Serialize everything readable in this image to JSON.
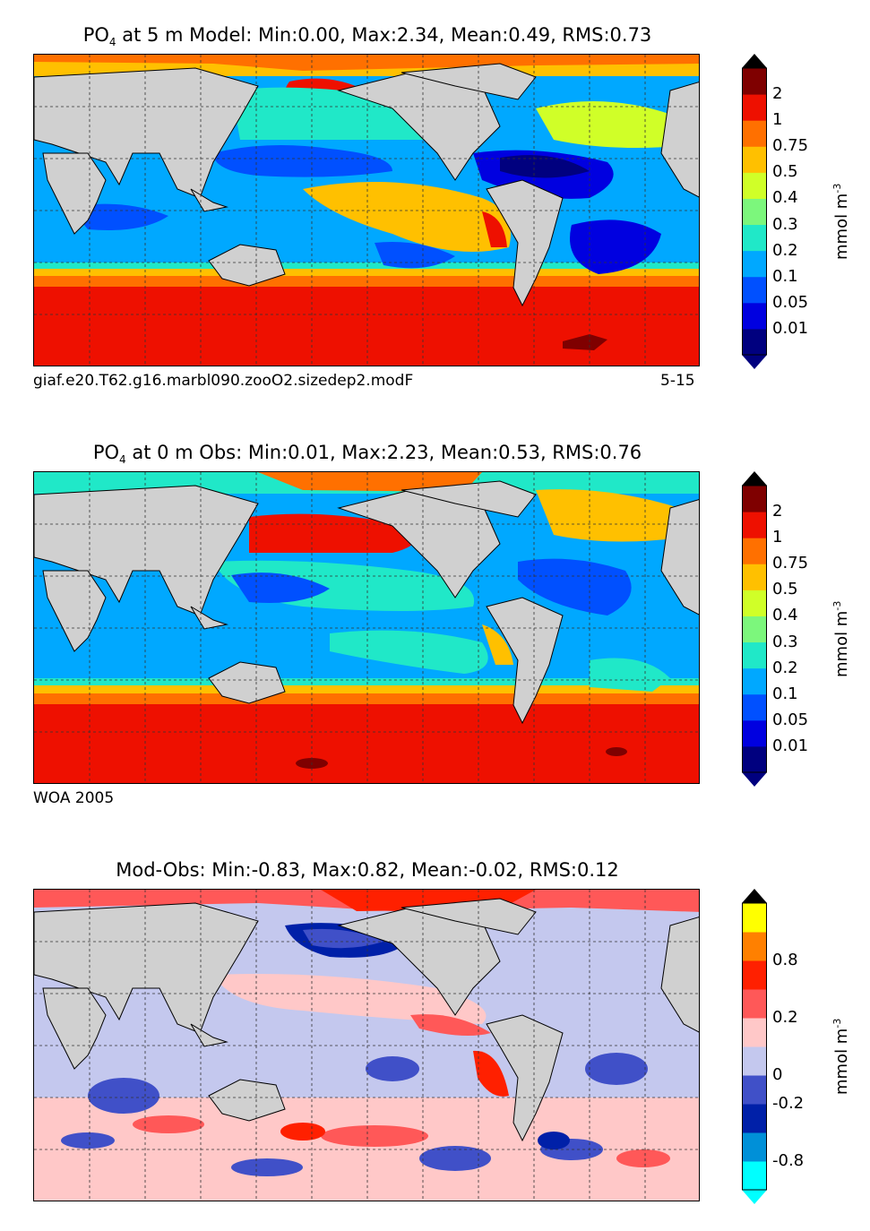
{
  "panels": [
    {
      "title_prefix": "PO",
      "title_sub": "4",
      "title_suffix": " at 5 m Model: Min:0.00, Max:2.34, Mean:0.49, RMS:0.73",
      "footer_left": "giaf.e20.T62.g16.marbl090.zooO2.sizedep2.modF",
      "footer_right": "5-15",
      "colorbar": {
        "colors": [
          "#00007f",
          "#0000e0",
          "#0050ff",
          "#00a8ff",
          "#20e8c8",
          "#7cf77c",
          "#d0ff28",
          "#ffc000",
          "#ff7000",
          "#ee1000",
          "#7f0000"
        ],
        "ticks": [
          "0.01",
          "0.05",
          "0.1",
          "0.2",
          "0.3",
          "0.4",
          "0.5",
          "0.75",
          "1",
          "2"
        ],
        "unit": "mmol m",
        "unit_sup": "-3"
      }
    },
    {
      "title_prefix": "PO",
      "title_sub": "4",
      "title_suffix": " at 0 m Obs: Min:0.01, Max:2.23, Mean:0.53, RMS:0.76",
      "footer_left": "WOA 2005",
      "footer_right": "",
      "colorbar": {
        "colors": [
          "#00007f",
          "#0000e0",
          "#0050ff",
          "#00a8ff",
          "#20e8c8",
          "#7cf77c",
          "#d0ff28",
          "#ffc000",
          "#ff7000",
          "#ee1000",
          "#7f0000"
        ],
        "ticks": [
          "0.01",
          "0.05",
          "0.1",
          "0.2",
          "0.3",
          "0.4",
          "0.5",
          "0.75",
          "1",
          "2"
        ],
        "unit": "mmol m",
        "unit_sup": "-3"
      }
    },
    {
      "title_prefix": "Mod-Obs: Min:-0.83, Max:0.82, Mean:-0.02, RMS:0.12",
      "title_sub": "",
      "title_suffix": "",
      "footer_left": "",
      "footer_right": "",
      "colorbar": {
        "colors": [
          "#00ffff",
          "#0090d8",
          "#0020a8",
          "#4050c8",
          "#c4c8ee",
          "#ffc8c8",
          "#ff5858",
          "#ff2000",
          "#ff8000",
          "#ffff00"
        ],
        "ticks": [
          "-0.8",
          "-0.2",
          "0",
          "0.2",
          "0.8"
        ],
        "unit": "mmol m",
        "unit_sup": "-3"
      }
    }
  ],
  "map_colors": {
    "land": "#d0d0d0",
    "grid": "#333333"
  }
}
